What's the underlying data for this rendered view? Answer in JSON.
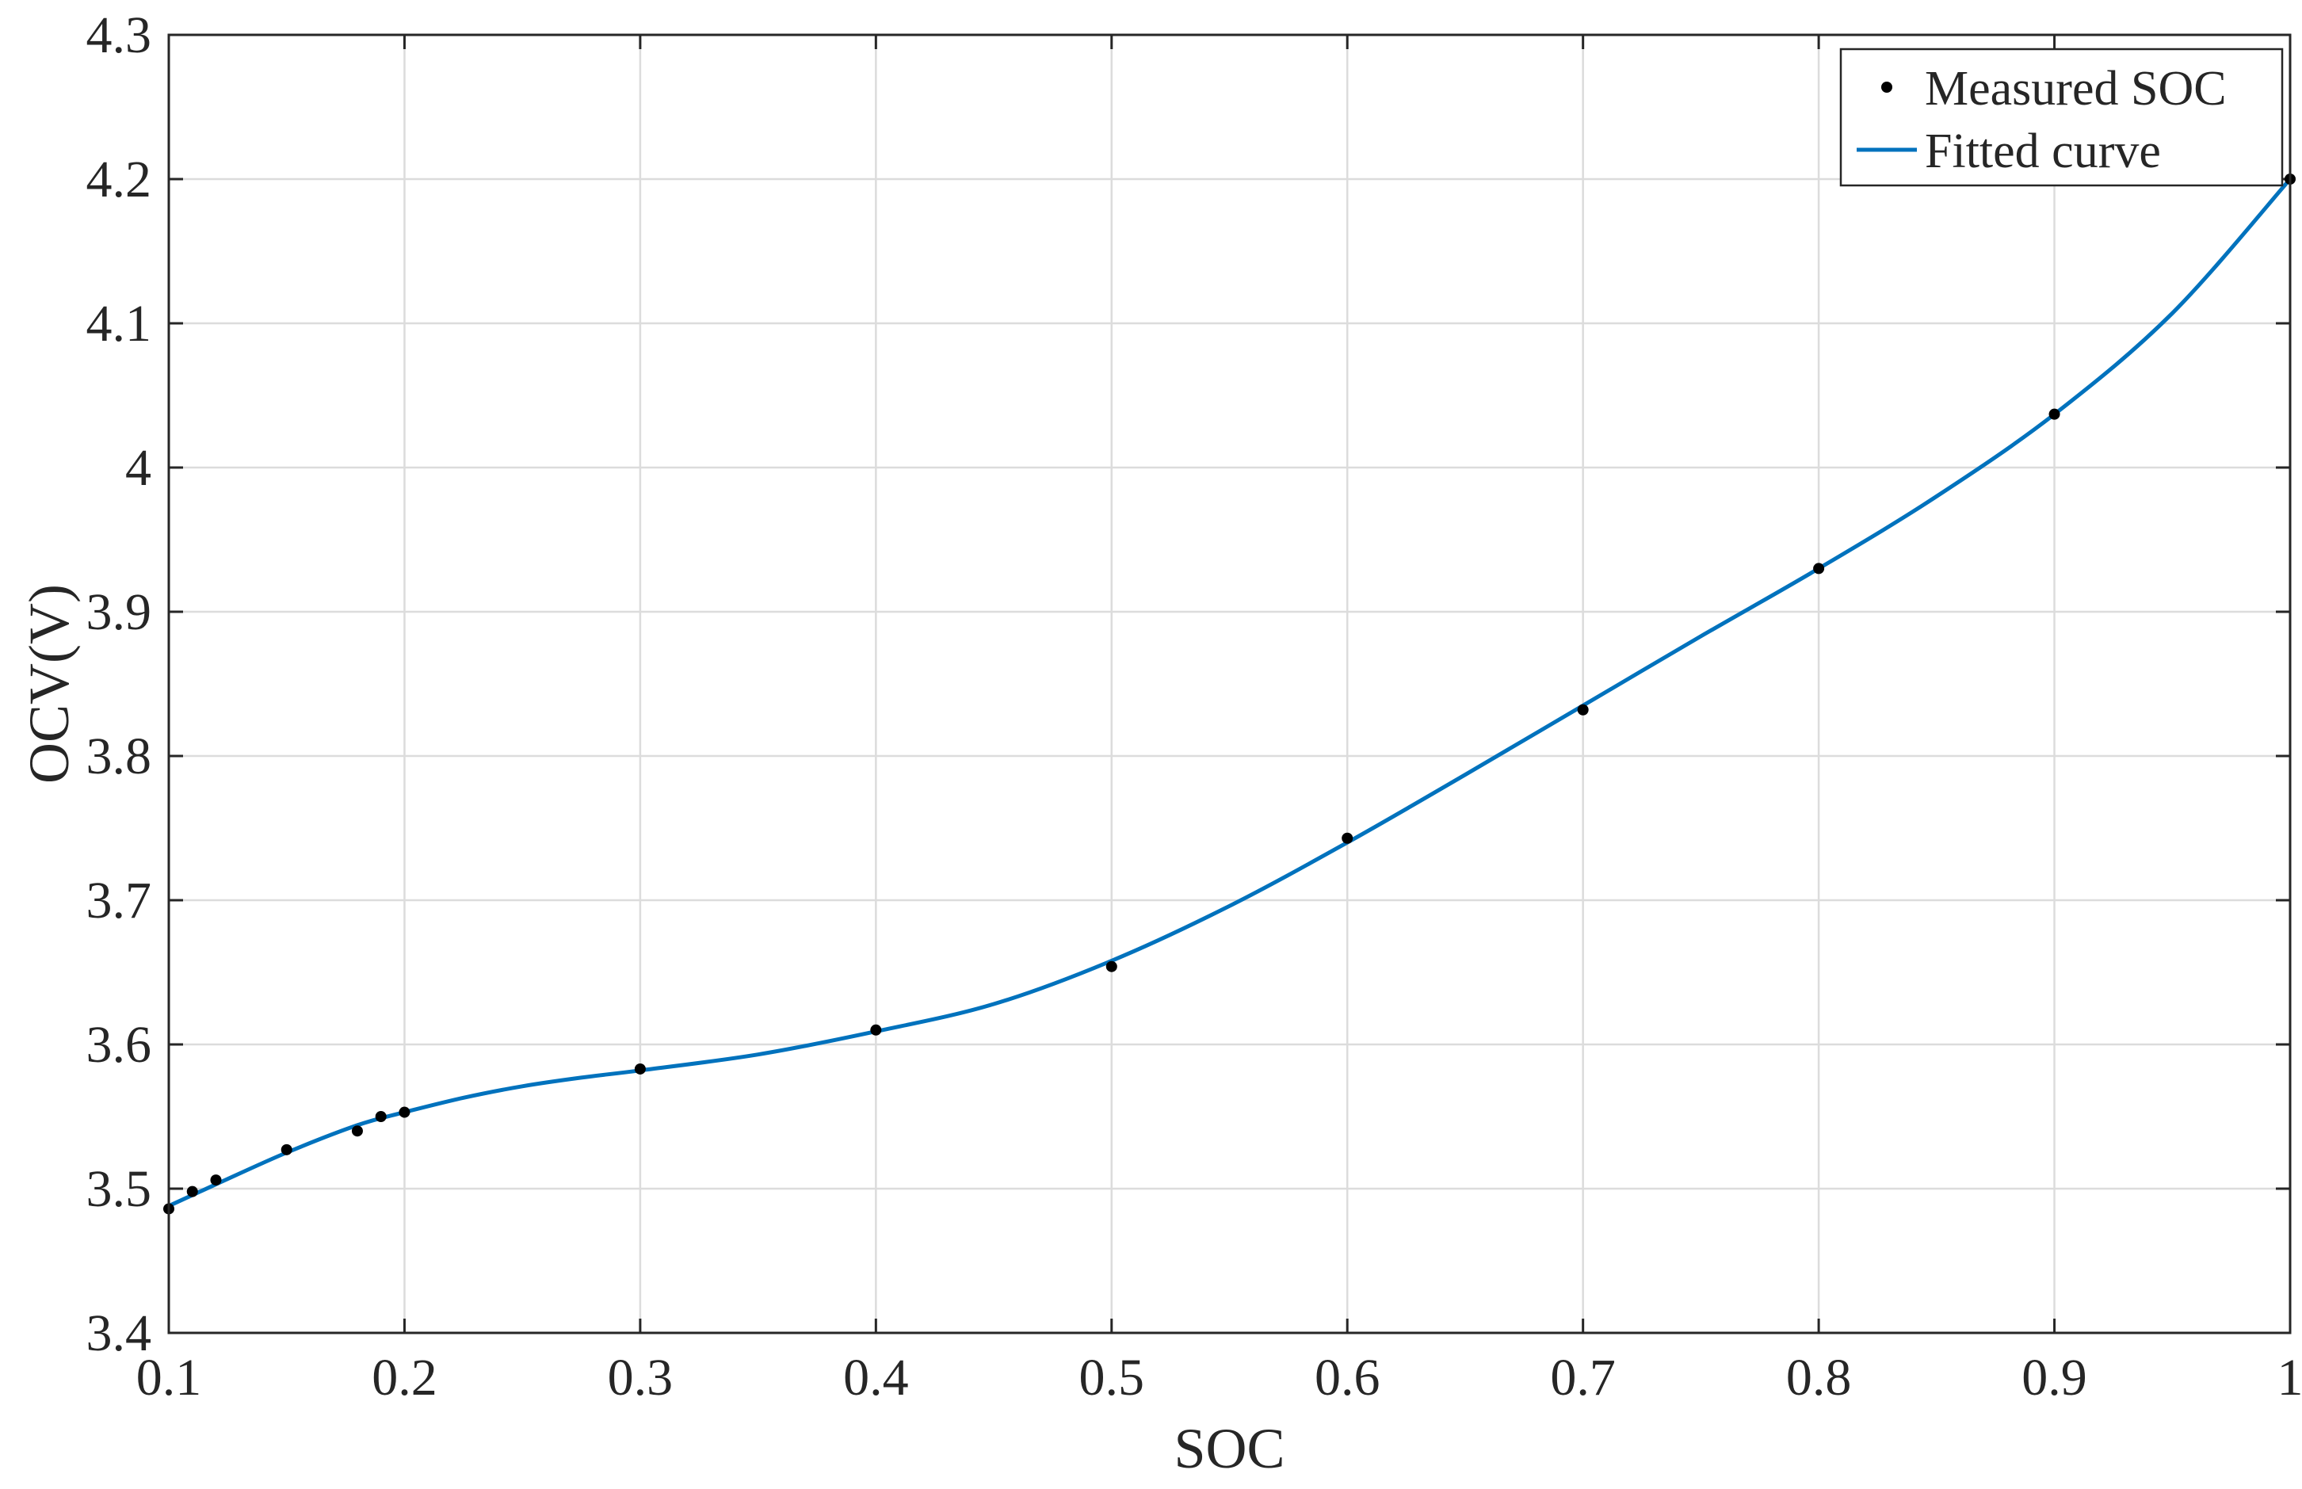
{
  "chart_data": {
    "type": "line",
    "title": "",
    "xlabel": "SOC",
    "ylabel": "OCV(V)",
    "xlim": [
      0.1,
      1.0
    ],
    "ylim": [
      3.4,
      4.3
    ],
    "xticks": [
      0.1,
      0.2,
      0.3,
      0.4,
      0.5,
      0.6,
      0.7,
      0.8,
      0.9,
      1.0
    ],
    "xtick_labels": [
      "0.1",
      "0.2",
      "0.3",
      "0.4",
      "0.5",
      "0.6",
      "0.7",
      "0.8",
      "0.9",
      "1"
    ],
    "yticks": [
      3.4,
      3.5,
      3.6,
      3.7,
      3.8,
      3.9,
      4.0,
      4.1,
      4.2,
      4.3
    ],
    "ytick_labels": [
      "3.4",
      "3.5",
      "3.6",
      "3.7",
      "3.8",
      "3.9",
      "4",
      "4.1",
      "4.2",
      "4.3"
    ],
    "grid": true,
    "legend_position": "top-right",
    "series": [
      {
        "name": "Measured SOC",
        "kind": "scatter",
        "color": "#000000",
        "x": [
          0.1,
          0.11,
          0.12,
          0.15,
          0.18,
          0.19,
          0.2,
          0.3,
          0.4,
          0.5,
          0.6,
          0.7,
          0.8,
          0.9,
          1.0
        ],
        "y": [
          3.486,
          3.498,
          3.506,
          3.527,
          3.54,
          3.55,
          3.553,
          3.583,
          3.61,
          3.654,
          3.743,
          3.832,
          3.93,
          4.037,
          4.2
        ]
      },
      {
        "name": "Fitted curve",
        "kind": "line",
        "color": "#0072BD",
        "x": [
          0.1,
          0.12,
          0.15,
          0.18,
          0.2,
          0.225,
          0.25,
          0.275,
          0.3,
          0.35,
          0.4,
          0.45,
          0.5,
          0.55,
          0.6,
          0.65,
          0.7,
          0.75,
          0.8,
          0.85,
          0.9,
          0.95,
          1.0
        ],
        "y": [
          3.488,
          3.503,
          3.525,
          3.544,
          3.553,
          3.563,
          3.571,
          3.577,
          3.582,
          3.593,
          3.609,
          3.628,
          3.658,
          3.696,
          3.74,
          3.787,
          3.835,
          3.883,
          3.93,
          3.98,
          4.037,
          4.107,
          4.2
        ]
      }
    ]
  }
}
